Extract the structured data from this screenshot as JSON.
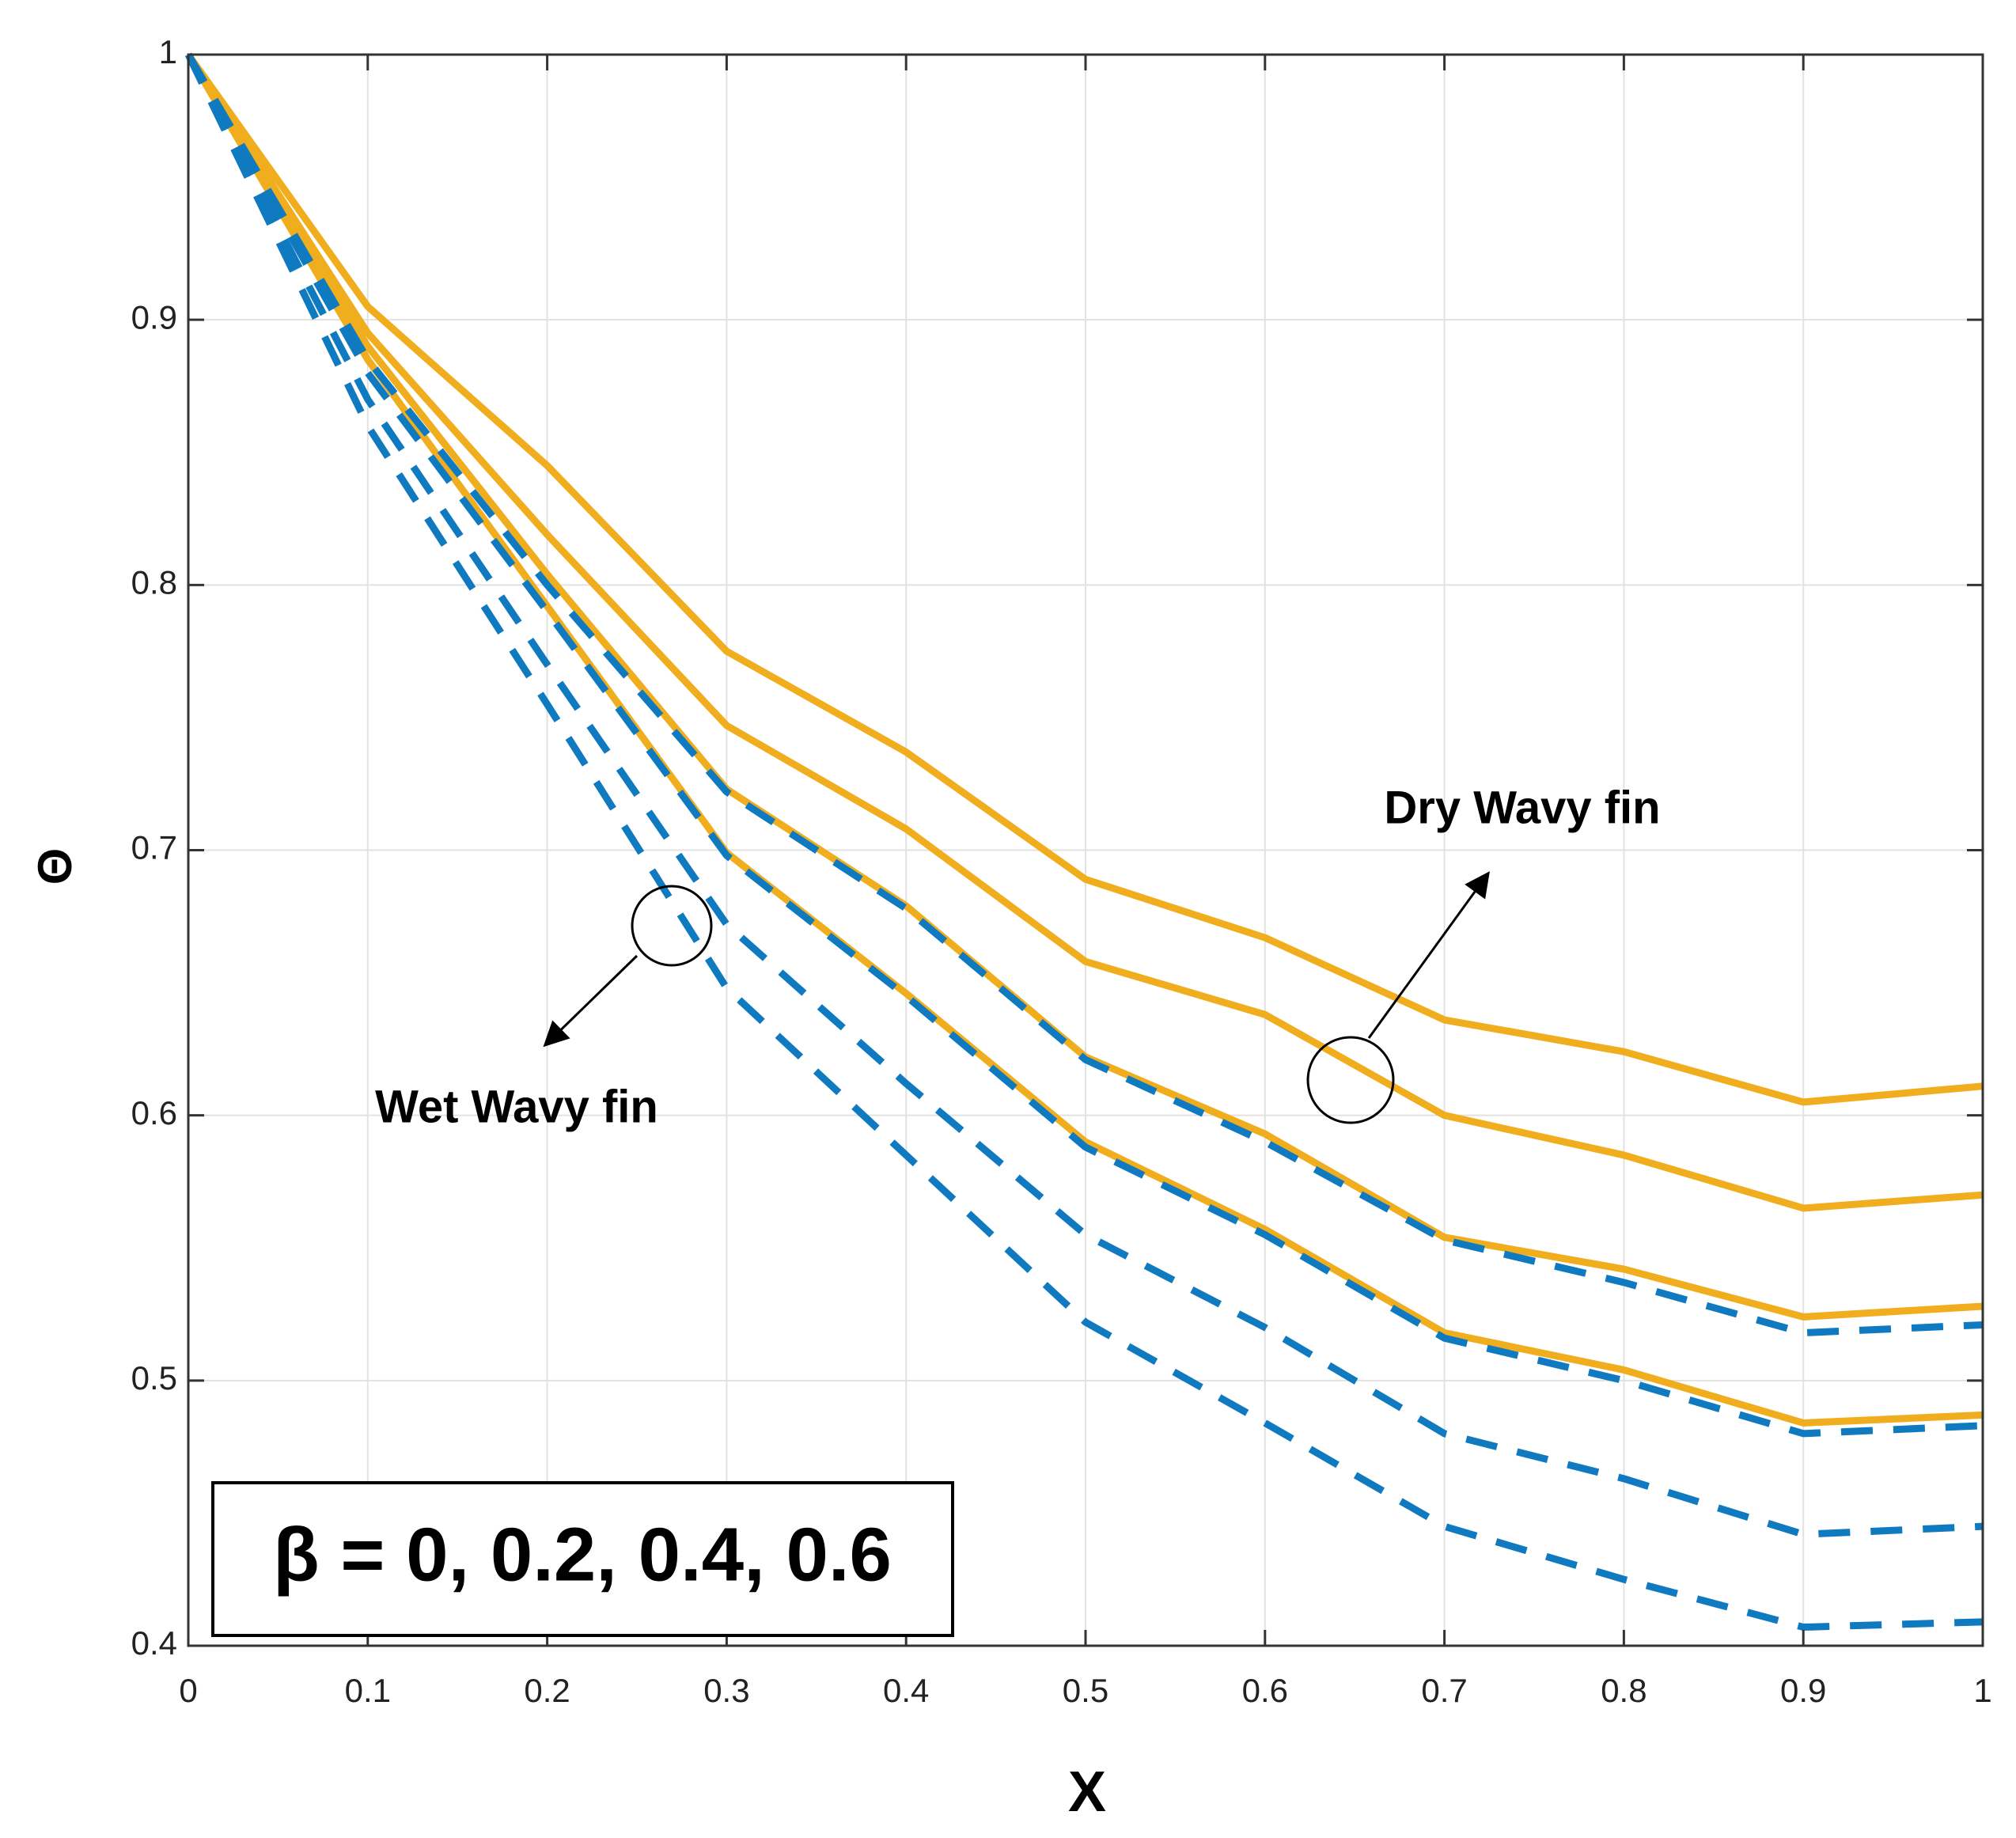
{
  "chart_data": {
    "type": "line",
    "xlabel": "X",
    "ylabel": "Θ",
    "x": [
      0,
      0.1,
      0.2,
      0.3,
      0.4,
      0.5,
      0.6,
      0.7,
      0.8,
      0.9,
      1
    ],
    "series": [
      {
        "color": "#f0ad1e",
        "dash": false,
        "values": [
          1,
          0.905,
          0.845,
          0.775,
          0.737,
          0.689,
          0.667,
          0.636,
          0.624,
          0.605,
          0.611
        ]
      },
      {
        "color": "#f0ad1e",
        "dash": false,
        "values": [
          1,
          0.895,
          0.819,
          0.747,
          0.708,
          0.658,
          0.638,
          0.6,
          0.585,
          0.565,
          0.57
        ]
      },
      {
        "color": "#f0ad1e",
        "dash": false,
        "values": [
          1,
          0.89,
          0.804,
          0.723,
          0.679,
          0.622,
          0.593,
          0.554,
          0.542,
          0.524,
          0.528
        ]
      },
      {
        "color": "#f0ad1e",
        "dash": false,
        "values": [
          1,
          0.885,
          0.792,
          0.699,
          0.646,
          0.59,
          0.557,
          0.518,
          0.504,
          0.484,
          0.487
        ]
      },
      {
        "color": "#0f7abf",
        "dash": true,
        "values": [
          1,
          0.885,
          0.8,
          0.722,
          0.678,
          0.621,
          0.59,
          0.553,
          0.537,
          0.518,
          0.521
        ]
      },
      {
        "color": "#0f7abf",
        "dash": true,
        "values": [
          1,
          0.88,
          0.79,
          0.698,
          0.645,
          0.588,
          0.555,
          0.516,
          0.5,
          0.48,
          0.483
        ]
      },
      {
        "color": "#0f7abf",
        "dash": true,
        "values": [
          1,
          0.87,
          0.77,
          0.672,
          0.612,
          0.555,
          0.52,
          0.48,
          0.463,
          0.442,
          0.445
        ]
      },
      {
        "color": "#0f7abf",
        "dash": true,
        "values": [
          1,
          0.86,
          0.755,
          0.648,
          0.585,
          0.522,
          0.484,
          0.445,
          0.425,
          0.407,
          0.409
        ]
      }
    ],
    "xlim": [
      0,
      1
    ],
    "xticks": [
      0,
      0.1,
      0.2,
      0.3,
      0.4,
      0.5,
      0.6,
      0.7,
      0.8,
      0.9,
      1
    ],
    "ylim": [
      0.4,
      1
    ],
    "yticks": [
      0.4,
      0.5,
      0.6,
      0.7,
      0.8,
      0.9,
      1
    ],
    "grid": true,
    "annotations": [
      "Dry Wavy fin",
      "Wet Wavy fin",
      "β = 0, 0.2, 0.4, 0.6"
    ]
  }
}
